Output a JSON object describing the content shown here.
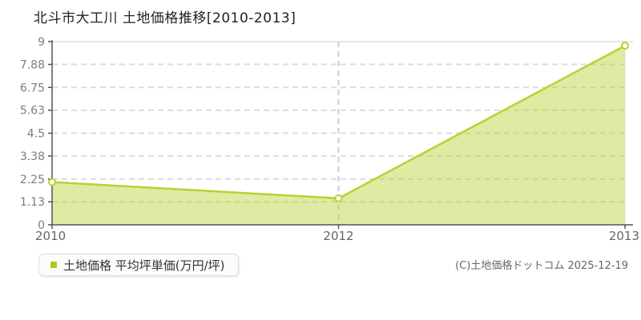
{
  "title": "北斗市大工川 土地価格推移[2010-2013]",
  "legend": {
    "label": "土地価格 平均坪単価(万円/坪)",
    "marker_color": "#a6d01e"
  },
  "copyright": "(C)土地価格ドットコム 2025-12-19",
  "colors": {
    "line": "#b5d333",
    "area_fill": "#dcec9f",
    "marker_fill": "#ffffff",
    "grid": "#dcdcdc",
    "border": "#e8e8e8",
    "axis": "#555555",
    "tick_text": "#7d7d7d",
    "x_tick_text": "#666666",
    "title_text": "#222222"
  },
  "chart_data": {
    "type": "area",
    "title": "北斗市大工川 土地価格推移[2010-2013]",
    "categories": [
      "2010",
      "2012",
      "2013"
    ],
    "series": [
      {
        "name": "土地価格 平均坪単価(万円/坪)",
        "values": [
          2.1,
          1.3,
          8.8
        ]
      }
    ],
    "xlabel": "",
    "ylabel": "",
    "ylim": [
      0,
      9
    ],
    "yticks": [
      0,
      1.13,
      2.25,
      3.38,
      4.5,
      5.63,
      6.75,
      7.88,
      9
    ],
    "ytick_labels": [
      "0",
      "1.13",
      "2.25",
      "3.38",
      "4.5",
      "5.63",
      "6.75",
      "7.88",
      "9"
    ],
    "grid": "horizontal dashed at every ytick; vertical dashed at 2012; solid light top/right border",
    "legend_position": "bottom-left"
  }
}
